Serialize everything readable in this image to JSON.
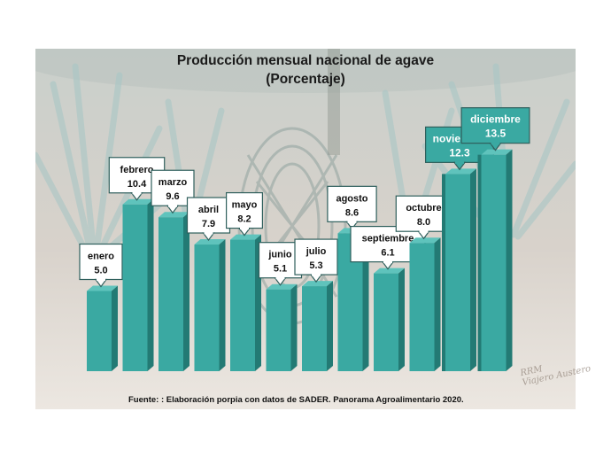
{
  "chart_data": {
    "type": "bar",
    "title": "Producción mensual nacional de agave",
    "subtitle": "(Porcentaje)",
    "categories": [
      "enero",
      "febrero",
      "marzo",
      "abril",
      "mayo",
      "junio",
      "julio",
      "agosto",
      "septiembre",
      "octubre",
      "noviembre",
      "diciembre"
    ],
    "values": [
      5.0,
      10.4,
      9.6,
      7.9,
      8.2,
      5.1,
      5.3,
      8.6,
      6.1,
      8.0,
      12.3,
      13.5
    ],
    "value_labels": [
      "5.0",
      "10.4",
      "9.6",
      "7.9",
      "8.2",
      "5.1",
      "5.3",
      "8.6",
      "6.1",
      "8.0",
      "12.3",
      "13.5"
    ],
    "highlighted": [
      "noviembre",
      "diciembre"
    ],
    "xlabel": "",
    "ylabel": "",
    "ylim": [
      0,
      14
    ],
    "grid": false,
    "legend": "none"
  },
  "colors": {
    "bar_front": "#3aa9a2",
    "bar_side": "#237a74",
    "bar_top": "#5fc3bc",
    "callout_highlight_bg": "#3aa9a2",
    "callout_highlight_text": "#ffffff",
    "callout_bg": "#ffffff",
    "callout_text": "#111111",
    "callout_border": "#2f5f5c"
  },
  "source": "Fuente: : Elaboración porpia con datos de SADER. Panorama Agroalimentario 2020.",
  "signature": {
    "line1": "RRM",
    "line2": "Viajero Austero"
  }
}
